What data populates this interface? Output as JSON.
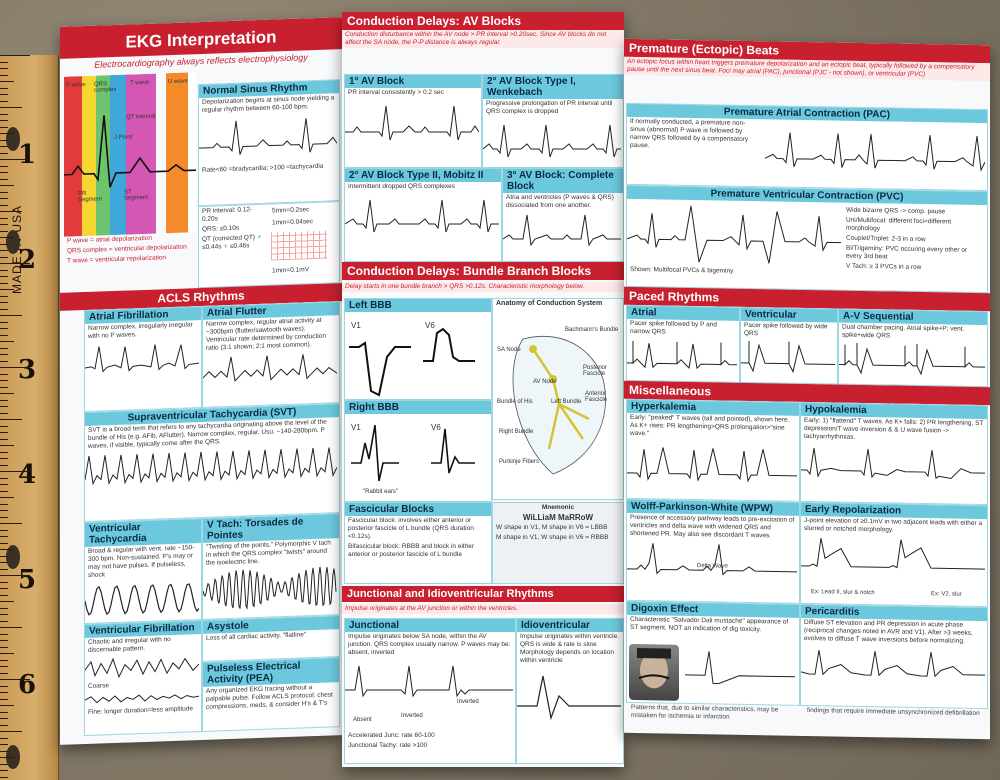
{
  "ruler": {
    "brand": "MADE IN USA",
    "marks": [
      "1",
      "2",
      "3",
      "4",
      "5",
      "6"
    ]
  },
  "left": {
    "title": "EKG Interpretation",
    "subtitle": "Electrocardiography always reflects electrophysiology",
    "normal_sinus": {
      "heading": "Normal Sinus Rhythm",
      "text": "Depolarization begins at sinus node yielding a regular rhythm between 60-100 bpm.",
      "rate": "Rate<60 =bradycardia; >100 =tachycardia"
    },
    "waves": {
      "p": "P wave",
      "qrs": "QRS complex",
      "t": "T wave",
      "u": "U wave",
      "j": "J Point",
      "pr": "PR Segment",
      "st": "ST Segment",
      "qt": "QT interval"
    },
    "intervals": {
      "pr": "PR interval: 0.12-0.20s",
      "qrs": "QRS: ≤0.10s",
      "qt": "QT (corrected QT) ♂ ≤0.44s ♀ ≤0.46s",
      "grid1": "5mm=0.2sec",
      "grid2": "1mm=0.04sec",
      "grid3": "1mm=0.1mV"
    },
    "legend": [
      "P wave = atrial depolarization",
      "QRS complex = ventricular depolarization",
      "T wave = ventricular repolarization"
    ],
    "acls_title": "ACLS Rhythms",
    "afib": {
      "heading": "Atrial Fibrillation",
      "text": "Narrow complex, irregularly irregular with no P waves."
    },
    "aflutter": {
      "heading": "Atrial Flutter",
      "text": "Narrow complex, regular atrial activity at ~300bpm (flutter/sawtooth waves). Ventricular rate determined by conduction ratio (3:1 shown; 2:1 most common)."
    },
    "svt": {
      "heading": "Supraventricular Tachycardia (SVT)",
      "text": "SVT is a broad term that refers to any tachycardia originating above the level of the bundle of His (e.g. AFib, AFlutter). Narrow complex, regular. Usu. ~140-280bpm. P waves, if visible, typically come after the QRS."
    },
    "vtach": {
      "heading": "Ventricular Tachycardia",
      "text": "Broad & regular with vent. rate ~150-300 bpm. Non-sustained. P's may or may not have pulses. If pulseless, shock"
    },
    "torsades": {
      "heading": "V Tach: Torsades de Pointes",
      "text": "\"Twisting of the points.\" Polymorphic V tach in which the QRS complex \"twists\" around the isoelectric line."
    },
    "vfib": {
      "heading": "Ventricular Fibrillation",
      "text": "Chaotic and irregular with no discernable pattern.",
      "coarse": "Coarse",
      "fine": "Fine: longer duration=less amplitude"
    },
    "asystole": {
      "heading": "Asystole",
      "text": "Loss of all cardiac activity. \"flatline\""
    },
    "pea": {
      "heading": "Pulseless Electrical Activity (PEA)",
      "text": "Any organized EKG tracing without a palpable pulse. Follow ACLS protocol: chest compressions, meds, & consider H's & T's"
    }
  },
  "middle": {
    "av_title": "Conduction Delays: AV Blocks",
    "av_sub": "Conduction disturbance within the AV node > PR interval >0.20sec. Since AV blocks do not affect the SA node, the P-P distance is always regular.",
    "first": {
      "heading": "1° AV Block",
      "text": "PR interval consistently > 0.2 sec"
    },
    "second1": {
      "heading": "2° AV Block Type I, Wenkebach",
      "text": "Progressive prolongation of PR interval until QRS complex is dropped"
    },
    "second2": {
      "heading": "2° AV Block Type II, Mobitz II",
      "text": "Intermittent dropped QRS complexes"
    },
    "third": {
      "heading": "3° AV Block: Complete Block",
      "text": "Atria and ventricles (P waves & QRS) dissociated from one another."
    },
    "bbb_title": "Conduction Delays: Bundle Branch Blocks",
    "bbb_sub": "Delay starts in one bundle branch > QRS >0.12s. Characteristic morphology below.",
    "lbbb": {
      "heading": "Left BBB",
      "v1": "V1",
      "v6": "V6"
    },
    "rbbb": {
      "heading": "Right BBB",
      "v1": "V1",
      "v6": "V6",
      "rabbit": "\"Rabbit ears\""
    },
    "anatomy": {
      "heading": "Anatomy of Conduction System",
      "labels": [
        "SA Node",
        "AV Node",
        "Bundle of His",
        "Left Bundle",
        "Right Bundle",
        "Purkinje Fibers",
        "Bachmann's Bundle",
        "Posterior Fascicle",
        "Anterior Fascicle"
      ]
    },
    "fascicular": {
      "heading": "Fascicular Blocks",
      "text1": "Fascicular block: involves either anterior or posterior fascicle of L bundle (QRS duration <0.12s).",
      "text2": "Bifascicular block: RBBB and block in either anterior or posterior fascicle of L bundle"
    },
    "mnemonic": {
      "heading": "Mnemonic",
      "word": "WiLLiaM MaRRoW",
      "line1": "W shape in V1, M shape in V6 = LBBB",
      "line2": "M shape in V1, W shape in V6 = RBBB"
    },
    "junc_title": "Junctional and Idioventricular Rhythms",
    "junc_sub": "Impulse originates at the AV junction or within the ventricles.",
    "junctional": {
      "heading": "Junctional",
      "text": "Impulse originates below SA node, within the AV junction. QRS complex usually narrow. P waves may be: absent, inverted",
      "absent": "Absent",
      "inverted": "Inverted",
      "inverted2": "Inverted",
      "rates": "Accelerated Junc: rate 60-100",
      "rates2": "Junctional Tachy: rate >100"
    },
    "idio": {
      "heading": "Idioventricular",
      "text": "Impulse originates within ventricle. QRS is wide & rate is slow. Morphology depends on location within ventricle"
    }
  },
  "right": {
    "pac_title": "Premature (Ectopic) Beats",
    "pac_sub": "An ectopic focus within heart triggers premature depolarization and an ectopic beat, typically followed by a compensatory pause until the next sinus beat. Foci may atrial (PAC), junctional (PJC - not shown), or ventricular (PVC)",
    "pac": {
      "heading": "Premature Atrial Contraction (PAC)",
      "text": "If normally conducted, a premature non-sinus (abnormal) P wave is followed by narrow QRS followed by a compensatory pause."
    },
    "pvc": {
      "heading": "Premature Ventricular Contraction (PVC)",
      "text": "Wide bizarre QRS -> comp. pause",
      "uni": "Uni/Multifocal: different foci=different morphology",
      "couplet": "Couplet/Triplet: 2-3 in a row",
      "bigem": "Bi/Trigeminy: PVC occuring every other or every 3rd beat",
      "vtach": "V Tach: ≥ 3 PVCs in a row",
      "shown": "Shown: Multifocal PVCs & bigeminy"
    },
    "paced_title": "Paced Rhythms",
    "atrial": {
      "heading": "Atrial",
      "text": "Pacer spike followed by P and narrow QRS"
    },
    "ventricular": {
      "heading": "Ventricular",
      "text": "Pacer spike followed by wide QRS"
    },
    "avseq": {
      "heading": "A-V Sequential",
      "text": "Dual chamber pacing. Atrial spike+P; vent. spike+wide QRS"
    },
    "misc_title": "Miscellaneous",
    "hyperk": {
      "heading": "Hyperkalemia",
      "text": "Early: \"peaked\" T waves (tall and pointed), shown here. As K+ rises: PR lengthening>QRS prolongation>\"sine wave.\""
    },
    "hypok": {
      "heading": "Hypokalemia",
      "text": "Early: 1) \"flattend\" T waves. As K+ falls: 2) PR lengthening, ST depression/T wave inversion & & U wave fusion -> tachyarrhythmias."
    },
    "wpw": {
      "heading": "Wolff-Parkinson-White (WPW)",
      "text": "Presence of accessory pathway leads to pre-excitation of ventricles and delta wave with widened QRS and shortened PR. May also see discordant T waves.",
      "delta": "Delta Wave"
    },
    "early": {
      "heading": "Early Repolarization",
      "text": "J-point elevation of ≥0.1mV in two adjacent leads with either a slurred or notched morphology.",
      "ex1": "Ex: Lead II, slur & notch",
      "ex2": "Ex: V2, slur"
    },
    "dig": {
      "heading": "Digoxin Effect",
      "text": "Characteristic \"Salvador Dali mustache\" appearance of ST segment. NOT an indication of dig toxicity."
    },
    "peri": {
      "heading": "Pericarditis",
      "text": "Diffuse ST elevation and PR depression in acute phase (reciprocal changes noted in AVR and V1). After >3 weeks, evolves to diffuse T wave inversions before normalizing."
    },
    "foot1": "Patterns that, due to similar characteristics, may be mistaken for ischemia or infarction",
    "foot2": "findings that require immediate unsynchronized defibrillation"
  }
}
